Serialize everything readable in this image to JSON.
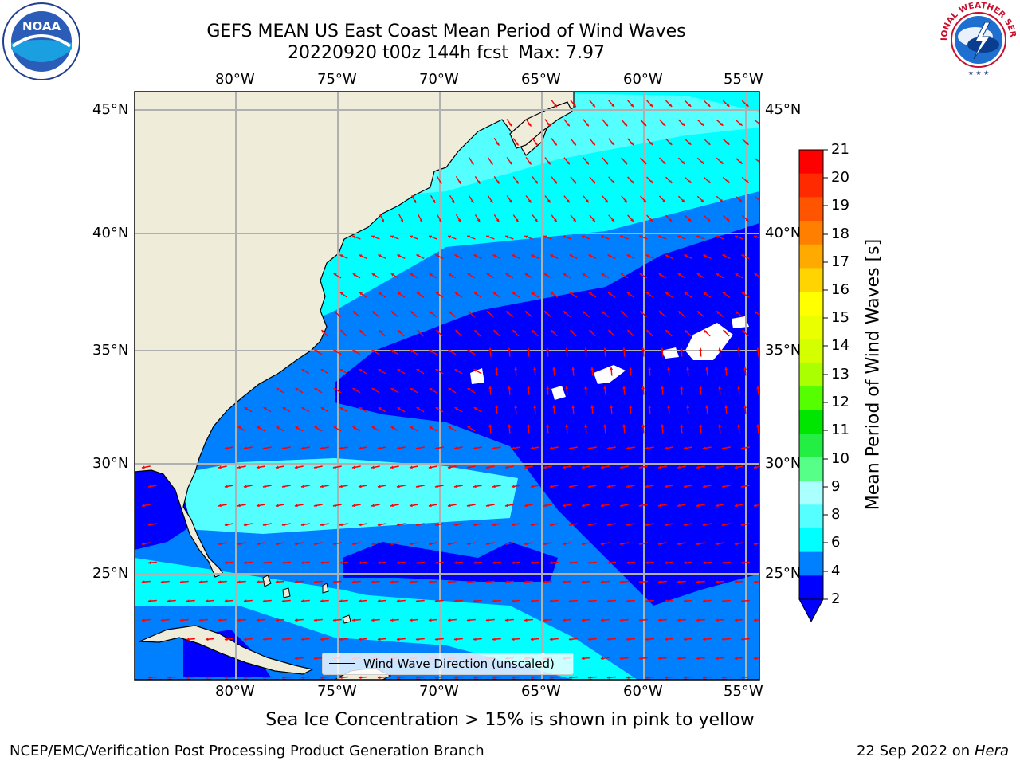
{
  "header": {
    "title": "GEFS MEAN US East Coast Mean Period of Wind Waves",
    "run": "20220920 t00z 144h fcst",
    "max": "Max: 7.97"
  },
  "logos": {
    "left": "NOAA",
    "right": "NATIONAL WEATHER SERVICE"
  },
  "map": {
    "lon_ticks": [
      "80°W",
      "75°W",
      "70°W",
      "65°W",
      "60°W",
      "55°W"
    ],
    "lat_ticks": [
      "45°N",
      "40°N",
      "35°N",
      "30°N",
      "25°N"
    ],
    "land_color": "#efecd9",
    "grid_color": "#b0b0b0",
    "arrow_color": "#ff0000",
    "legend_label": "Wind Wave Direction (unscaled)"
  },
  "colorbar": {
    "label": "Mean Period of Wind Waves [s]",
    "ticks": [
      "21",
      "20",
      "19",
      "18",
      "17",
      "16",
      "15",
      "14",
      "13",
      "12",
      "11",
      "10",
      "9",
      "8",
      "6",
      "4",
      "2"
    ],
    "colors": [
      "#ff0000",
      "#ff2a00",
      "#ff5500",
      "#ff7f00",
      "#ffaa00",
      "#ffd400",
      "#ffff00",
      "#eaff00",
      "#d4ff00",
      "#aaff00",
      "#55ff00",
      "#00e600",
      "#22ee44",
      "#55ff88",
      "#aaffff",
      "#55ffff",
      "#00ffff",
      "#0080ff",
      "#0000ff"
    ]
  },
  "footer": {
    "ice_note": "Sea Ice Concentration > 15% is shown in pink to yellow",
    "credit": "NCEP/EMC/Verification Post Processing Product Generation Branch",
    "date": "22 Sep 2022 on",
    "host": "Hera"
  }
}
